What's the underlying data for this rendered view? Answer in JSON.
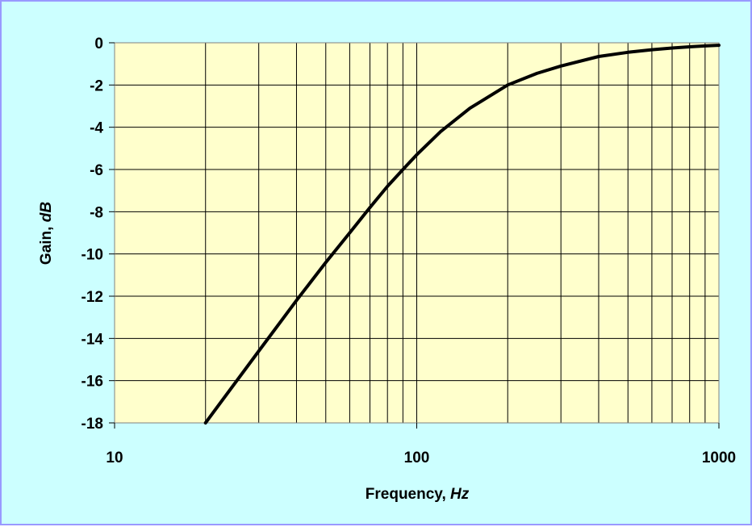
{
  "chart_data": {
    "type": "line",
    "xlabel": {
      "text": "Frequency, ",
      "unit": "Hz"
    },
    "ylabel": {
      "text": "Gain, ",
      "unit": "dB"
    },
    "x_scale": "log",
    "xlim": [
      10,
      1000
    ],
    "ylim": [
      -18,
      0
    ],
    "x_ticks": [
      "10",
      "100",
      "1000"
    ],
    "y_ticks": [
      "0",
      "-2",
      "-4",
      "-6",
      "-8",
      "-10",
      "-12",
      "-14",
      "-16",
      "-18"
    ],
    "grid": true,
    "series": [
      {
        "x": [
          20,
          30,
          40,
          50,
          60,
          70,
          80,
          90,
          100,
          120,
          150,
          200,
          250,
          300,
          400,
          500,
          600,
          700,
          800,
          900,
          1000
        ],
        "y": [
          -18.0,
          -14.6,
          -12.2,
          -10.4,
          -9.0,
          -7.8,
          -6.8,
          -6.0,
          -5.3,
          -4.2,
          -3.1,
          -2.0,
          -1.45,
          -1.1,
          -0.65,
          -0.45,
          -0.33,
          -0.25,
          -0.19,
          -0.15,
          -0.12
        ]
      }
    ],
    "colors": {
      "background": "#ccffff",
      "border": "#9999ff",
      "plot_area": "#ffffcc",
      "line": "#000000",
      "grid": "#000000"
    }
  }
}
